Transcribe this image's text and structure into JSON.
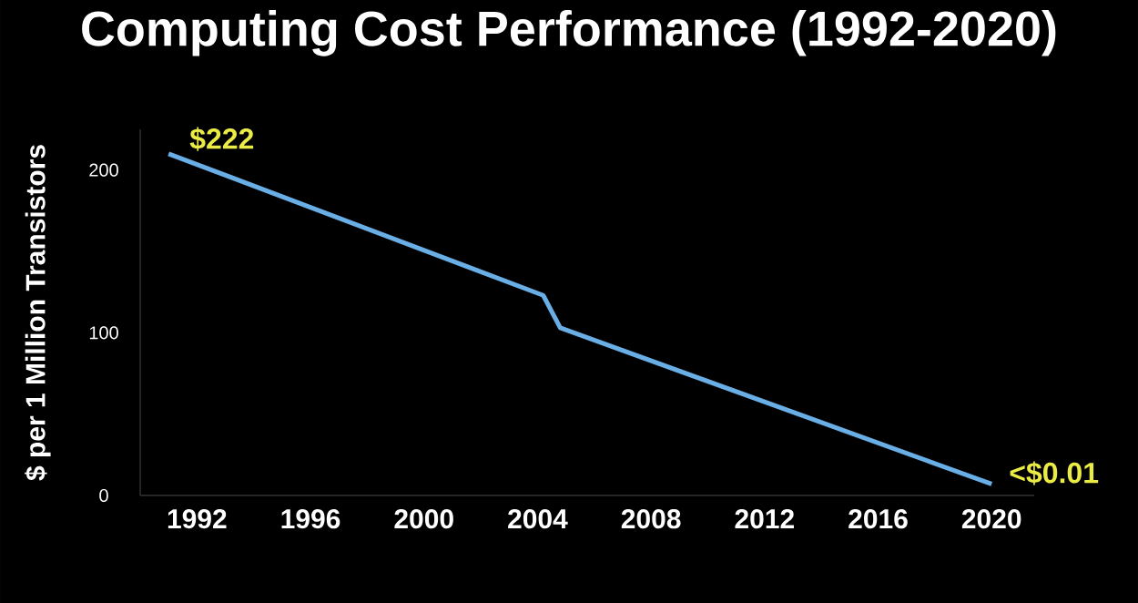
{
  "chart_data": {
    "type": "line",
    "title": "Computing Cost Performance (1992-2020)",
    "ylabel": "$ per 1 Million Transistors",
    "x": [
      1991,
      2004.2,
      2004.8,
      2020
    ],
    "series": [
      {
        "color": "#6aaee6",
        "values": [
          210,
          123,
          103,
          7
        ]
      }
    ],
    "xlim": [
      1990,
      2021.5
    ],
    "xticks": [
      1992,
      1996,
      2000,
      2004,
      2008,
      2012,
      2016,
      2020
    ],
    "ylim": [
      0,
      225
    ],
    "yticks": [
      0,
      100,
      200
    ],
    "annotations": [
      {
        "text": "$222",
        "x": 1991,
        "y": 210
      },
      {
        "text": "<$0.01",
        "x": 2020,
        "y": 7
      }
    ],
    "grid": false,
    "marker": "none",
    "line_style": "solid"
  }
}
